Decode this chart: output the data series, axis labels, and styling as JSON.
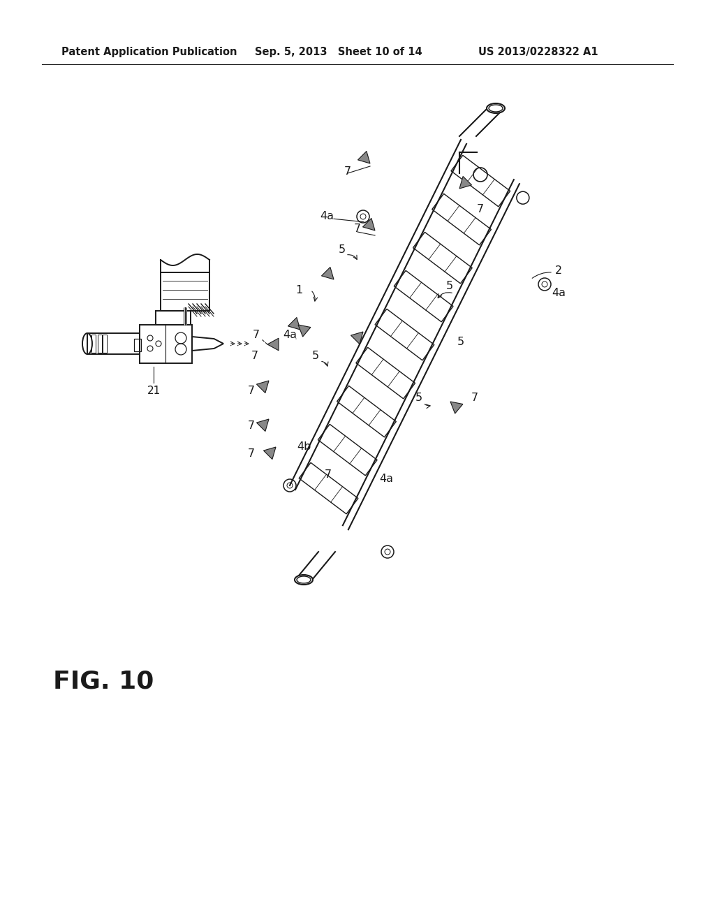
{
  "header_left": "Patent Application Publication",
  "header_mid": "Sep. 5, 2013   Sheet 10 of 14",
  "header_right": "US 2013/0228322 A1",
  "figure_label": "FIG. 10",
  "background_color": "#ffffff",
  "line_color": "#1a1a1a",
  "header_fontsize": 10.5,
  "fig_label_fontsize": 26,
  "lw": 1.4
}
